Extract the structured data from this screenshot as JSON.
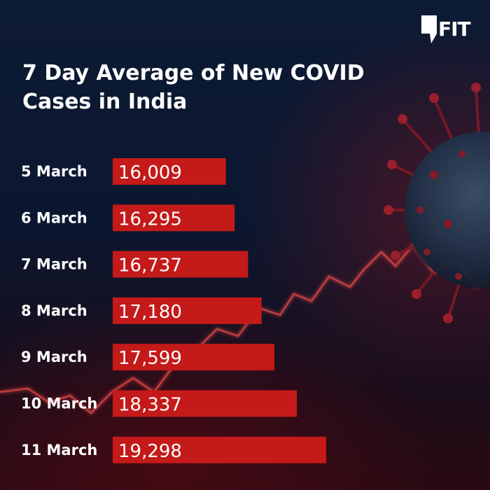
{
  "brand": {
    "logo_text": "FIT"
  },
  "colors": {
    "bar": "#c41a1a",
    "bar_highlight": "#d92222",
    "text": "#ffffff",
    "accent_line": "#e84848"
  },
  "chart_data": {
    "type": "bar",
    "orientation": "horizontal",
    "title": "7 Day Average of New COVID Cases in India",
    "categories": [
      "5 March",
      "6 March",
      "7 March",
      "8 March",
      "9 March",
      "10 March",
      "11 March"
    ],
    "values": [
      16009,
      16295,
      16737,
      17180,
      17599,
      18337,
      19298
    ],
    "value_labels": [
      "16,009",
      "16,295",
      "16,737",
      "17,180",
      "17,599",
      "18,337",
      "19,298"
    ],
    "xlim": [
      12300,
      19298
    ],
    "grid": false,
    "legend": "none"
  }
}
